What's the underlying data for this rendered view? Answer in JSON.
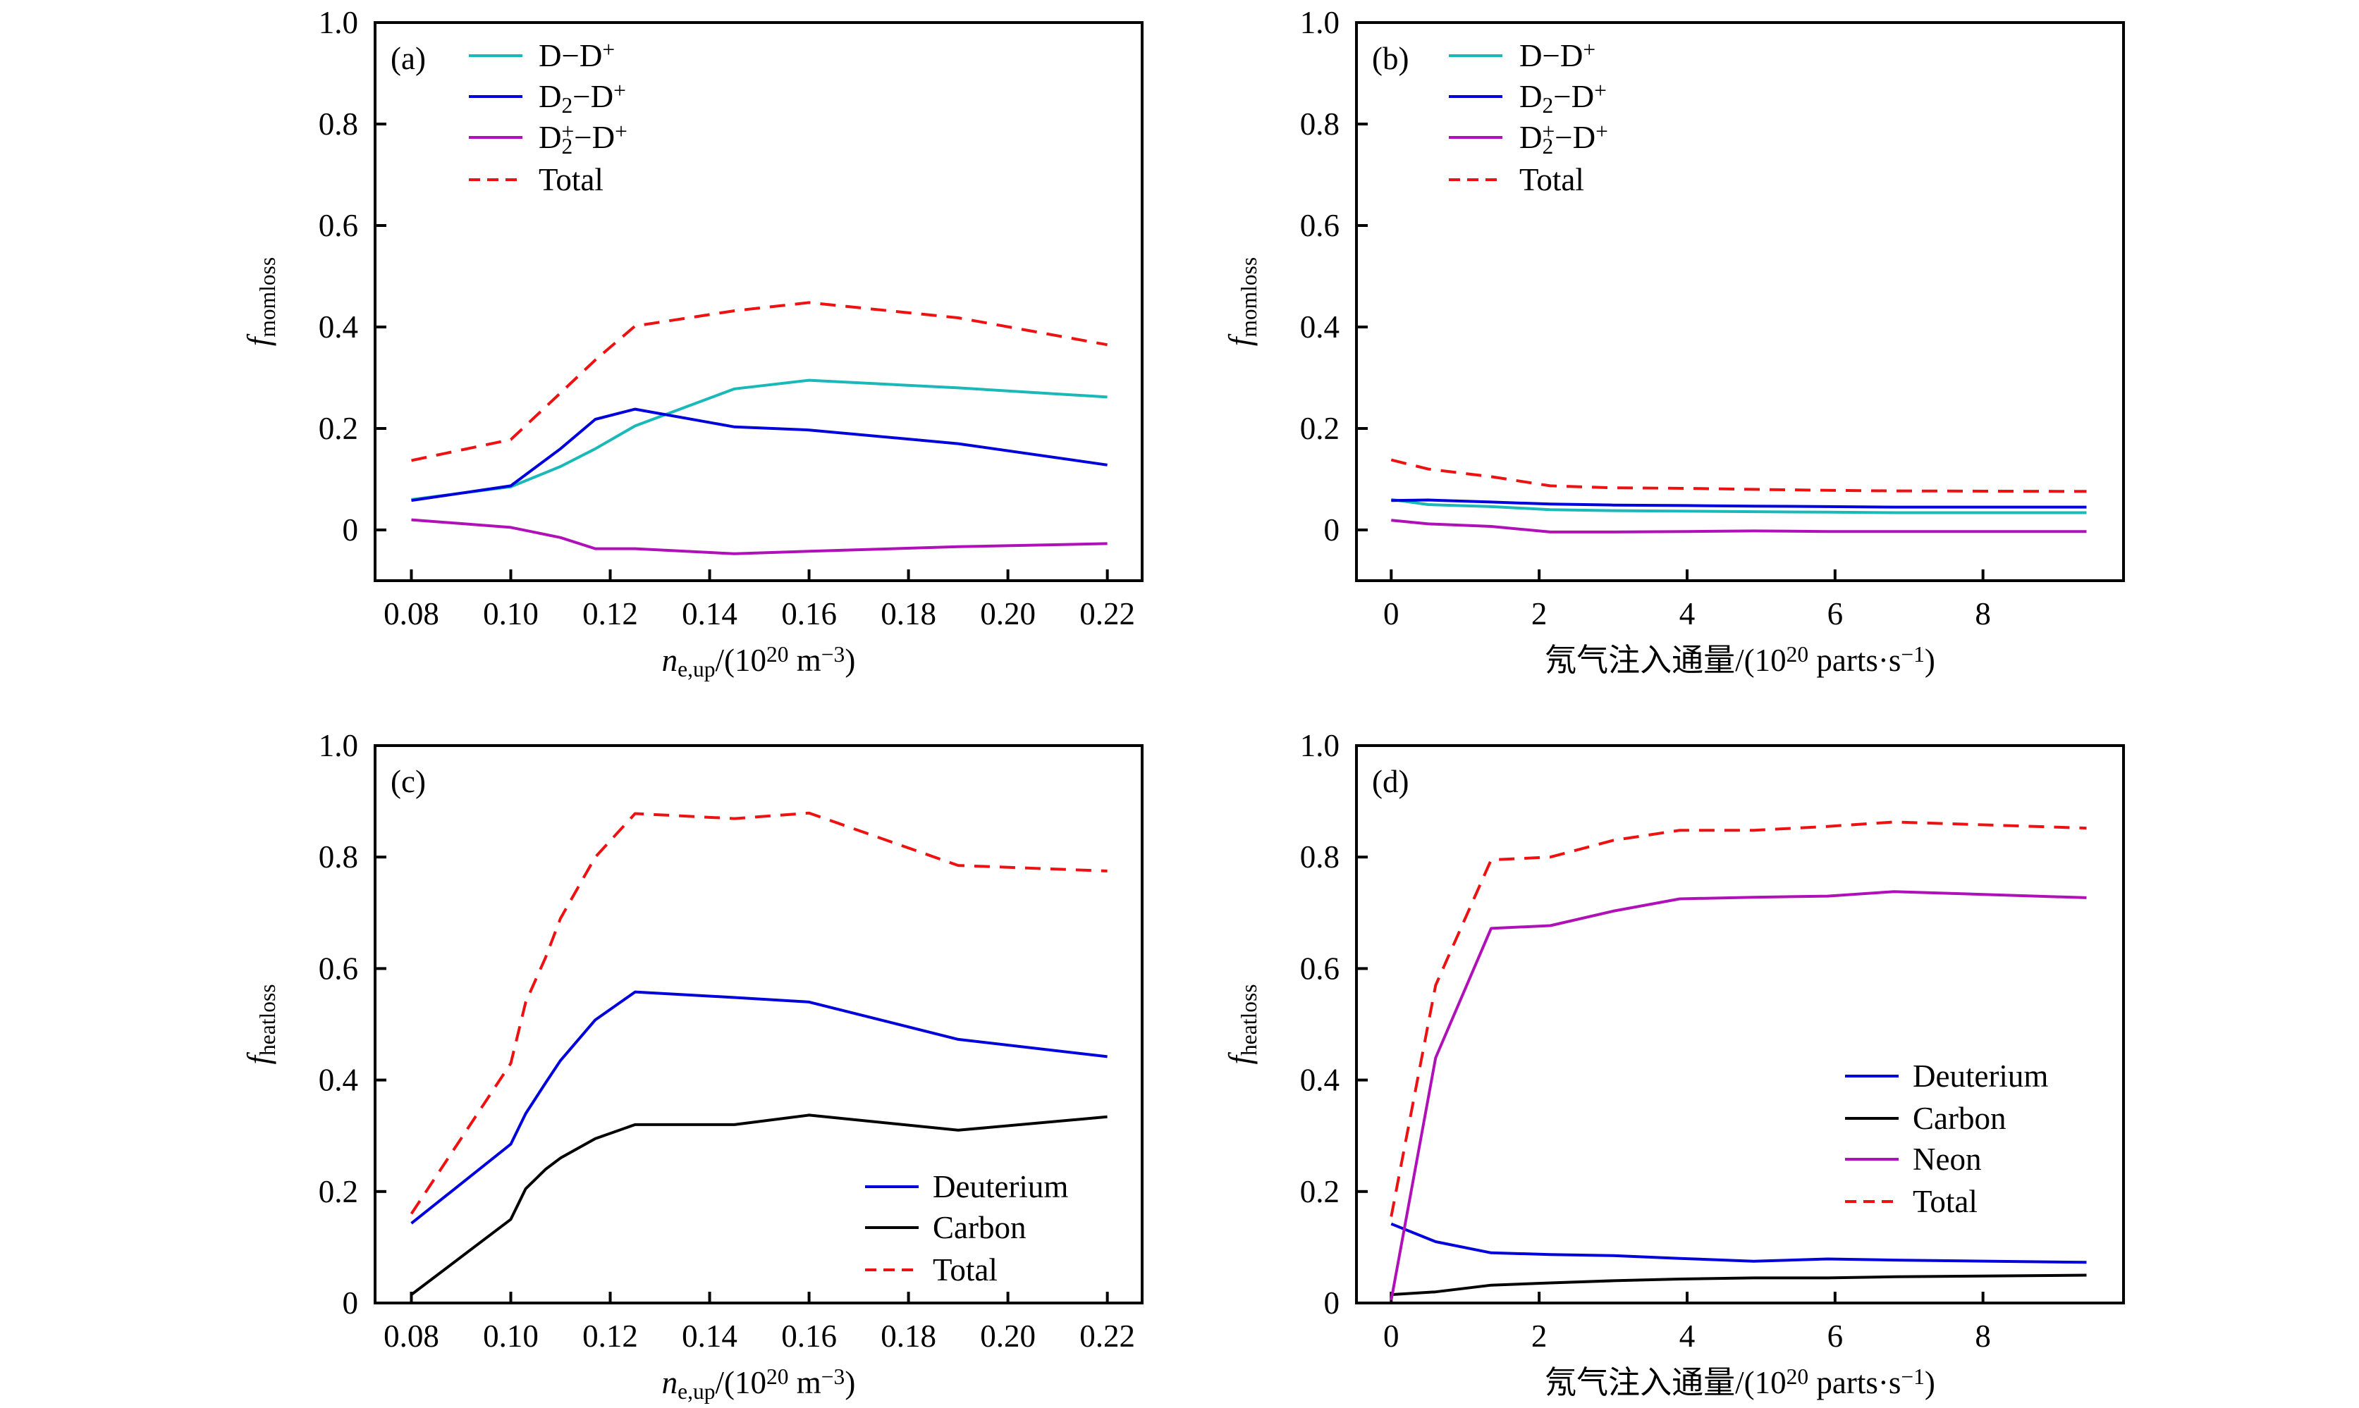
{
  "colors": {
    "D-D+": "#1ab8b8",
    "D2-D+": "#0000dd",
    "D2+-D+": "#b010b8",
    "Total": "#ee1111",
    "Deuterium": "#0000dd",
    "Carbon": "#000000",
    "Neon": "#b010b8"
  },
  "chart_data": [
    {
      "type": "line",
      "panel_label": "(a)",
      "xlabel": [
        {
          "t": "n",
          "f": "i"
        },
        {
          "t": "e,up",
          "f": "sub"
        },
        {
          "t": "/(10"
        },
        {
          "t": "20",
          "f": "sup"
        },
        {
          "t": " m"
        },
        {
          "t": "−3",
          "f": "sup"
        },
        {
          "t": ")"
        }
      ],
      "ylabel": [
        {
          "t": "f",
          "f": "i"
        },
        {
          "t": "momloss",
          "f": "sub"
        }
      ],
      "xlim": [
        0.0727,
        0.227
      ],
      "ylim": [
        -0.1,
        1.0
      ],
      "xticks": [
        "0.08",
        "0.10",
        "0.12",
        "0.14",
        "0.16",
        "0.18",
        "0.20",
        "0.22"
      ],
      "yticks": [
        "0",
        "0.2",
        "0.4",
        "0.6",
        "0.8",
        "1.0"
      ],
      "legend": "top-left",
      "x": [
        0.08,
        0.1,
        0.11,
        0.117,
        0.125,
        0.145,
        0.16,
        0.19,
        0.22
      ],
      "series": [
        {
          "key": "D-D+",
          "name": [
            {
              "t": "D−D"
            },
            {
              "t": "+",
              "f": "sup"
            }
          ],
          "style": "solid",
          "values": [
            0.06,
            0.085,
            0.125,
            0.16,
            0.205,
            0.278,
            0.295,
            0.28,
            0.262
          ]
        },
        {
          "key": "D2-D+",
          "name": [
            {
              "t": "D"
            },
            {
              "t": "2",
              "f": "sub"
            },
            {
              "t": "−D"
            },
            {
              "t": "+",
              "f": "sup"
            }
          ],
          "style": "solid",
          "values": [
            0.058,
            0.087,
            0.16,
            0.218,
            0.238,
            0.203,
            0.197,
            0.17,
            0.128
          ]
        },
        {
          "key": "D2+-D+",
          "name": [
            {
              "t": "D"
            },
            {
              "t": "2",
              "f": "sub"
            },
            {
              "t": "+",
              "f": "sup2"
            },
            {
              "t": "−D"
            },
            {
              "t": "+",
              "f": "sup"
            }
          ],
          "style": "solid",
          "values": [
            0.02,
            0.005,
            -0.015,
            -0.037,
            -0.037,
            -0.047,
            -0.042,
            -0.033,
            -0.027
          ]
        },
        {
          "key": "Total",
          "name": [
            {
              "t": "Total"
            }
          ],
          "style": "dashed",
          "values": [
            0.137,
            0.178,
            0.27,
            0.335,
            0.402,
            0.432,
            0.448,
            0.418,
            0.365
          ]
        }
      ]
    },
    {
      "type": "line",
      "panel_label": "(b)",
      "xlabel": [
        {
          "t": "氖气注入通量/(10"
        },
        {
          "t": "20",
          "f": "sup"
        },
        {
          "t": " parts·s"
        },
        {
          "t": "−1",
          "f": "sup"
        },
        {
          "t": ")"
        }
      ],
      "ylabel": [
        {
          "t": "f",
          "f": "i"
        },
        {
          "t": "momloss",
          "f": "sub"
        }
      ],
      "xlim": [
        -0.47,
        9.9
      ],
      "ylim": [
        -0.1,
        1.0
      ],
      "xticks": [
        "0",
        "2",
        "4",
        "6",
        "8"
      ],
      "yticks": [
        "0",
        "0.2",
        "0.4",
        "0.6",
        "0.8",
        "1.0"
      ],
      "legend": "top-left",
      "x": [
        0,
        0.5,
        1.35,
        2.15,
        3,
        4,
        4.9,
        5.9,
        6.8,
        9.4
      ],
      "series": [
        {
          "key": "D-D+",
          "name": [
            {
              "t": "D−D"
            },
            {
              "t": "+",
              "f": "sup"
            }
          ],
          "style": "solid",
          "values": [
            0.06,
            0.05,
            0.046,
            0.04,
            0.038,
            0.037,
            0.036,
            0.035,
            0.034,
            0.034
          ]
        },
        {
          "key": "D2-D+",
          "name": [
            {
              "t": "D"
            },
            {
              "t": "2",
              "f": "sub"
            },
            {
              "t": "−D"
            },
            {
              "t": "+",
              "f": "sup"
            }
          ],
          "style": "solid",
          "values": [
            0.058,
            0.059,
            0.055,
            0.051,
            0.049,
            0.048,
            0.047,
            0.046,
            0.045,
            0.045
          ]
        },
        {
          "key": "D2+-D+",
          "name": [
            {
              "t": "D"
            },
            {
              "t": "2",
              "f": "sub"
            },
            {
              "t": "+",
              "f": "sup2"
            },
            {
              "t": "−D"
            },
            {
              "t": "+",
              "f": "sup"
            }
          ],
          "style": "solid",
          "values": [
            0.019,
            0.012,
            0.007,
            -0.004,
            -0.004,
            -0.003,
            -0.002,
            -0.003,
            -0.003,
            -0.003
          ]
        },
        {
          "key": "Total",
          "name": [
            {
              "t": "Total"
            }
          ],
          "style": "dashed",
          "values": [
            0.138,
            0.12,
            0.105,
            0.087,
            0.083,
            0.082,
            0.08,
            0.078,
            0.077,
            0.076
          ]
        }
      ]
    },
    {
      "type": "line",
      "panel_label": "(c)",
      "xlabel": [
        {
          "t": "n",
          "f": "i"
        },
        {
          "t": "e,up",
          "f": "sub"
        },
        {
          "t": "/(10"
        },
        {
          "t": "20",
          "f": "sup"
        },
        {
          "t": " m"
        },
        {
          "t": "−3",
          "f": "sup"
        },
        {
          "t": ")"
        }
      ],
      "ylabel": [
        {
          "t": "f",
          "f": "i"
        },
        {
          "t": "heatloss",
          "f": "sub"
        }
      ],
      "xlim": [
        0.0727,
        0.227
      ],
      "ylim": [
        0,
        1.0
      ],
      "xticks": [
        "0.08",
        "0.10",
        "0.12",
        "0.14",
        "0.16",
        "0.18",
        "0.20",
        "0.22"
      ],
      "yticks": [
        "0",
        "0.2",
        "0.4",
        "0.6",
        "0.8",
        "1.0"
      ],
      "legend": "bottom-right",
      "x": [
        0.08,
        0.1,
        0.103,
        0.107,
        0.11,
        0.117,
        0.125,
        0.145,
        0.16,
        0.19,
        0.22
      ],
      "series": [
        {
          "key": "Deuterium",
          "name": [
            {
              "t": "Deuterium"
            }
          ],
          "style": "solid",
          "values": [
            0.143,
            0.285,
            0.34,
            0.395,
            0.435,
            0.508,
            0.558,
            0.548,
            0.54,
            0.473,
            0.442
          ]
        },
        {
          "key": "Carbon",
          "name": [
            {
              "t": "Carbon"
            }
          ],
          "style": "solid",
          "values": [
            0.015,
            0.15,
            0.205,
            0.24,
            0.26,
            0.295,
            0.32,
            0.32,
            0.337,
            0.31,
            0.334
          ]
        },
        {
          "key": "Total",
          "name": [
            {
              "t": "Total"
            }
          ],
          "style": "dashed",
          "values": [
            0.16,
            0.43,
            0.54,
            0.62,
            0.69,
            0.8,
            0.878,
            0.869,
            0.879,
            0.785,
            0.775
          ]
        }
      ]
    },
    {
      "type": "line",
      "panel_label": "(d)",
      "xlabel": [
        {
          "t": "氖气注入通量/(10"
        },
        {
          "t": "20",
          "f": "sup"
        },
        {
          "t": " parts·s"
        },
        {
          "t": "−1",
          "f": "sup"
        },
        {
          "t": ")"
        }
      ],
      "ylabel": [
        {
          "t": "f",
          "f": "i"
        },
        {
          "t": "heatloss",
          "f": "sub"
        }
      ],
      "xlim": [
        -0.47,
        9.9
      ],
      "ylim": [
        0,
        1.0
      ],
      "xticks": [
        "0",
        "2",
        "4",
        "6",
        "8"
      ],
      "yticks": [
        "0",
        "0.2",
        "0.4",
        "0.6",
        "0.8",
        "1.0"
      ],
      "legend": "right",
      "x": [
        0,
        0.6,
        1.35,
        2.15,
        3,
        3.9,
        4.9,
        5.9,
        6.8,
        9.4
      ],
      "series": [
        {
          "key": "Deuterium",
          "name": [
            {
              "t": "Deuterium"
            }
          ],
          "style": "solid",
          "values": [
            0.142,
            0.11,
            0.09,
            0.087,
            0.085,
            0.08,
            0.075,
            0.079,
            0.077,
            0.073
          ]
        },
        {
          "key": "Carbon",
          "name": [
            {
              "t": "Carbon"
            }
          ],
          "style": "solid",
          "values": [
            0.015,
            0.02,
            0.032,
            0.036,
            0.04,
            0.043,
            0.045,
            0.045,
            0.047,
            0.05
          ]
        },
        {
          "key": "Neon",
          "name": [
            {
              "t": "Neon"
            }
          ],
          "style": "solid",
          "values": [
            0.005,
            0.44,
            0.672,
            0.677,
            0.703,
            0.725,
            0.728,
            0.73,
            0.738,
            0.727
          ]
        },
        {
          "key": "Total",
          "name": [
            {
              "t": "Total"
            }
          ],
          "style": "dashed",
          "values": [
            0.155,
            0.57,
            0.795,
            0.8,
            0.83,
            0.848,
            0.848,
            0.855,
            0.863,
            0.852
          ]
        }
      ]
    }
  ]
}
